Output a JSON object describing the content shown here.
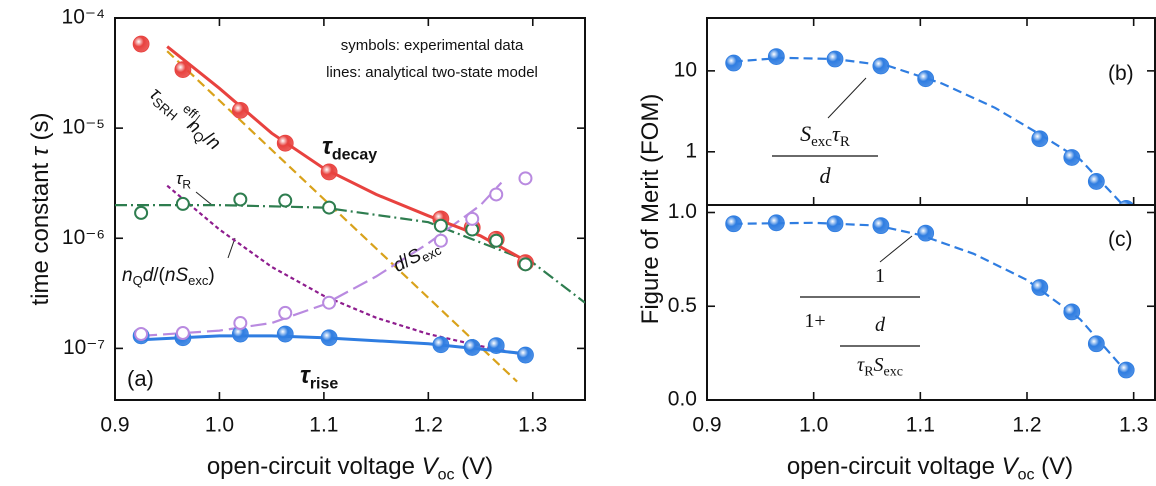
{
  "chart_data": [
    {
      "type": "scatter",
      "log_y": true,
      "xlim": [
        0.9,
        1.35
      ],
      "xticks": [
        0.9,
        {
          "value": 1,
          "label": "1.0"
        },
        1.1,
        1.2,
        1.3
      ],
      "ylim": [
        3.4e-08,
        0.0001
      ],
      "yticks": [
        {
          "value": 1e-07,
          "label": "10⁻⁷"
        },
        {
          "value": 1e-06,
          "label": "10⁻⁶"
        },
        {
          "value": 1e-05,
          "label": "10⁻⁵"
        },
        {
          "value": 0.0001,
          "label": "10⁻⁴"
        }
      ],
      "x_title": {
        "parts": [
          {
            "t": "open-circuit voltage "
          },
          {
            "t": "V",
            "it": true
          },
          {
            "t": "oc",
            "s": "sub"
          },
          {
            "t": " (V)"
          }
        ]
      },
      "y_title": {
        "parts": [
          {
            "t": "time constant "
          },
          {
            "t": "τ",
            "it": true
          },
          {
            "t": " (s)"
          }
        ]
      },
      "x": [
        0.925,
        0.965,
        1.02,
        1.063,
        1.105,
        1.212,
        1.242,
        1.265,
        1.293
      ],
      "series": [
        {
          "color": "#e8423f",
          "marker": "sphere",
          "values": [
            5.8e-05,
            3.4e-05,
            1.45e-05,
            7.3e-06,
            4e-06,
            1.5e-06,
            1.25e-06,
            9.8e-07,
            6e-07
          ]
        },
        {
          "color": "#2f7de1",
          "marker": "sphere",
          "values": [
            1.3e-07,
            1.25e-07,
            1.35e-07,
            1.35e-07,
            1.25e-07,
            1.08e-07,
            1.02e-07,
            1.06e-07,
            8.7e-08
          ]
        },
        {
          "color": "#2e7d4f",
          "marker": "open",
          "values": [
            1.7e-06,
            2.05e-06,
            2.25e-06,
            2.2e-06,
            1.9e-06,
            1.3e-06,
            1.2e-06,
            9.5e-07,
            5.8e-07
          ]
        },
        {
          "color": "#b98ae0",
          "marker": "open",
          "values": [
            1.35e-07,
            1.38e-07,
            1.7e-07,
            2.1e-07,
            2.6e-07,
            9.5e-07,
            1.5e-06,
            2.5e-06,
            3.5e-06
          ]
        }
      ],
      "lines": [
        {
          "color": "#d9a21b",
          "dash": "dashed",
          "x": [
            0.95,
            1.285
          ],
          "values": [
            5e-05,
            5e-08
          ]
        },
        {
          "color": "#8e1d8e",
          "dash": "dotted",
          "x": [
            0.95,
            1.0,
            1.05,
            1.1,
            1.15,
            1.2,
            1.25,
            1.285
          ],
          "values": [
            3e-06,
            1.2e-06,
            5.5e-07,
            3e-07,
            1.9e-07,
            1.35e-07,
            1.05e-07,
            9e-08
          ]
        },
        {
          "color": "#2e7d4f",
          "dash": "dashdot",
          "x": [
            0.9,
            1.0,
            1.1,
            1.2,
            1.3,
            1.35
          ],
          "values": [
            2e-06,
            2e-06,
            1.9e-06,
            1.4e-06,
            6e-07,
            2.6e-07
          ]
        },
        {
          "color": "#b98ae0",
          "dash": "longdash",
          "x": [
            0.925,
            1.0,
            1.05,
            1.1,
            1.15,
            1.2,
            1.25,
            1.27
          ],
          "values": [
            1.3e-07,
            1.45e-07,
            1.7e-07,
            2.5e-07,
            4.5e-07,
            9e-07,
            2e-06,
            3.2e-06
          ]
        },
        {
          "color": "#e8423f",
          "dash": "solid",
          "x": [
            0.95,
            1.0,
            1.05,
            1.1,
            1.15,
            1.2,
            1.25,
            1.29
          ],
          "values": [
            5.5e-05,
            2.3e-05,
            9e-06,
            4.3e-06,
            2.5e-06,
            1.6e-06,
            1.05e-06,
            6.5e-07
          ]
        },
        {
          "color": "#2f7de1",
          "dash": "solid",
          "x": [
            0.925,
            1.0,
            1.05,
            1.1,
            1.2,
            1.29
          ],
          "values": [
            1.2e-07,
            1.3e-07,
            1.3e-07,
            1.25e-07,
            1.1e-07,
            9e-08
          ]
        }
      ],
      "annotations": [
        {
          "parts": [
            {
              "t": "symbols: experimental data"
            }
          ]
        },
        {
          "parts": [
            {
              "t": "lines: analytical two-state model"
            }
          ]
        },
        {
          "parts": [
            {
              "t": "(a)"
            }
          ]
        },
        {
          "color": "#e8423f",
          "parts": [
            {
              "t": "τ",
              "it": true
            },
            {
              "t": "decay",
              "s": "sub"
            }
          ]
        },
        {
          "color": "#2f7de1",
          "parts": [
            {
              "t": "τ",
              "it": true
            },
            {
              "t": "rise",
              "s": "sub"
            }
          ]
        },
        {
          "color": "#c9961b",
          "parts": [
            {
              "t": "τ",
              "it": true
            },
            {
              "t": "SRH",
              "s": "sub"
            },
            {
              "t": "eff",
              "s": "sup"
            },
            {
              "t": "n",
              "it": true
            },
            {
              "t": "Q",
              "s": "sub"
            },
            {
              "t": "/"
            },
            {
              "t": "n",
              "it": true
            }
          ]
        },
        {
          "color": "#1f8a8a",
          "parts": [
            {
              "t": "τ",
              "it": true
            },
            {
              "t": "R",
              "s": "sub"
            }
          ]
        },
        {
          "color": "#8e1d8e",
          "parts": [
            {
              "t": "n",
              "it": true
            },
            {
              "t": "Q",
              "s": "sub"
            },
            {
              "t": "d",
              "it": true
            },
            {
              "t": "/("
            },
            {
              "t": "nS",
              "it": true
            },
            {
              "t": "exc",
              "s": "sub"
            },
            {
              "t": ")"
            }
          ]
        },
        {
          "color": "#b98ae0",
          "parts": [
            {
              "t": "d",
              "it": true
            },
            {
              "t": "/"
            },
            {
              "t": "S",
              "it": true
            },
            {
              "t": "exc",
              "s": "sub"
            }
          ]
        }
      ]
    },
    {
      "type": "scatter",
      "log_y": true,
      "xlim": [
        0.9,
        1.32
      ],
      "ylim": [
        0.22,
        45
      ],
      "yticks": [
        1,
        10
      ],
      "y_title": {
        "parts": [
          {
            "t": "Figure of Merit (FOM)"
          }
        ]
      },
      "x": [
        0.925,
        0.965,
        1.02,
        1.063,
        1.105,
        1.212,
        1.242,
        1.265,
        1.293
      ],
      "series": [
        {
          "color": "#2f7de1",
          "marker": "sphere",
          "values": [
            12.5,
            15,
            14,
            11.5,
            8,
            1.45,
            0.85,
            0.43,
            0.2
          ]
        }
      ],
      "lines": [
        {
          "color": "#2f7de1",
          "dash": "dashed",
          "x": [
            0.925,
            0.97,
            1.02,
            1.07,
            1.12,
            1.17,
            1.21,
            1.25,
            1.29
          ],
          "values": [
            13,
            14.5,
            14,
            11.5,
            7,
            3.5,
            1.7,
            0.8,
            0.22
          ]
        }
      ],
      "annotations": [
        {
          "parts": [
            {
              "t": "(b)"
            }
          ]
        },
        {
          "parts": [
            {
              "t": "S",
              "it": true
            },
            {
              "t": "exc",
              "s": "sub"
            },
            {
              "t": "τ",
              "it": true
            },
            {
              "t": "R",
              "s": "sub"
            }
          ]
        },
        {
          "parts": [
            {
              "t": "d",
              "it": true
            }
          ]
        }
      ]
    },
    {
      "type": "scatter",
      "log_y": false,
      "xlim": [
        0.9,
        1.32
      ],
      "xticks": [
        0.9,
        {
          "value": 1,
          "label": "1.0"
        },
        1.1,
        1.2,
        1.3
      ],
      "ylim": [
        0,
        1.04
      ],
      "yticks": [
        {
          "value": 0,
          "label": "0.0"
        },
        0.5,
        {
          "value": 1,
          "label": "1.0"
        }
      ],
      "x_title": {
        "parts": [
          {
            "t": "open-circuit voltage "
          },
          {
            "t": "V",
            "it": true
          },
          {
            "t": "oc",
            "s": "sub"
          },
          {
            "t": " (V)"
          }
        ]
      },
      "x": [
        0.925,
        0.965,
        1.02,
        1.063,
        1.105,
        1.212,
        1.242,
        1.265,
        1.293
      ],
      "series": [
        {
          "color": "#2f7de1",
          "marker": "sphere",
          "values": [
            0.94,
            0.945,
            0.94,
            0.93,
            0.89,
            0.6,
            0.47,
            0.3,
            0.16
          ]
        }
      ],
      "lines": [
        {
          "color": "#2f7de1",
          "dash": "dashed",
          "x": [
            0.925,
            1.0,
            1.06,
            1.1,
            1.15,
            1.2,
            1.25,
            1.29
          ],
          "values": [
            0.94,
            0.945,
            0.93,
            0.88,
            0.78,
            0.64,
            0.43,
            0.17
          ]
        }
      ],
      "annotations": [
        {
          "parts": [
            {
              "t": "(c)"
            }
          ]
        },
        {
          "parts": [
            {
              "t": "1"
            }
          ]
        },
        {
          "parts": [
            {
              "t": "1+"
            }
          ]
        },
        {
          "parts": [
            {
              "t": "d",
              "it": true
            }
          ]
        },
        {
          "parts": [
            {
              "t": "τ",
              "it": true
            },
            {
              "t": "R",
              "s": "sub"
            },
            {
              "t": "S",
              "it": true
            },
            {
              "t": "exc",
              "s": "sub"
            }
          ]
        }
      ]
    }
  ]
}
